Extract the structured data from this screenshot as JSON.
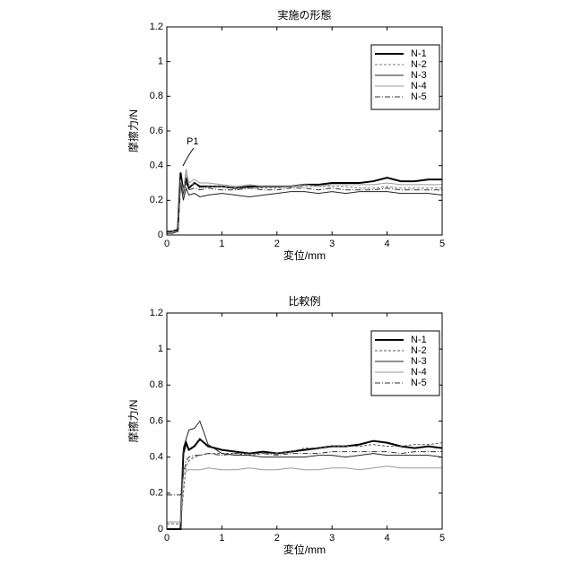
{
  "chart_data": [
    {
      "type": "line",
      "title": "実施の形態",
      "x_label": "変位/mm",
      "y_label": "摩擦力/N",
      "annotation": "P1",
      "x": [
        0,
        0.1,
        0.2,
        0.25,
        0.3,
        0.35,
        0.4,
        0.5,
        0.6,
        0.75,
        1,
        1.25,
        1.5,
        1.75,
        2,
        2.25,
        2.5,
        2.75,
        3,
        3.25,
        3.5,
        3.75,
        4,
        4.25,
        4.5,
        4.75,
        5
      ],
      "xlim": [
        0,
        5
      ],
      "xticks": [
        0,
        1,
        2,
        3,
        4,
        5
      ],
      "ylim": [
        0,
        1.2
      ],
      "yticks": [
        0,
        0.2,
        0.4,
        0.6,
        0.8,
        1,
        1.2
      ],
      "legend": "upper right",
      "series": [
        {
          "name": "N-1",
          "color": "#000000",
          "width": 2,
          "dash": "none",
          "values": [
            0.02,
            0.02,
            0.03,
            0.36,
            0.25,
            0.33,
            0.27,
            0.3,
            0.28,
            0.28,
            0.28,
            0.27,
            0.28,
            0.28,
            0.28,
            0.28,
            0.29,
            0.29,
            0.3,
            0.3,
            0.3,
            0.31,
            0.33,
            0.31,
            0.31,
            0.32,
            0.32
          ]
        },
        {
          "name": "N-2",
          "color": "#777777",
          "width": 1,
          "dash": "3 2",
          "values": [
            0.02,
            0.02,
            0.02,
            0.3,
            0.22,
            0.35,
            0.28,
            0.3,
            0.27,
            0.28,
            0.28,
            0.27,
            0.27,
            0.27,
            0.27,
            0.28,
            0.28,
            0.28,
            0.28,
            0.28,
            0.27,
            0.27,
            0.28,
            0.27,
            0.27,
            0.27,
            0.27
          ]
        },
        {
          "name": "N-3",
          "color": "#222222",
          "width": 1,
          "dash": "none",
          "values": [
            0.01,
            0.01,
            0.02,
            0.3,
            0.2,
            0.27,
            0.23,
            0.24,
            0.22,
            0.23,
            0.24,
            0.23,
            0.22,
            0.23,
            0.24,
            0.25,
            0.25,
            0.24,
            0.25,
            0.24,
            0.25,
            0.25,
            0.25,
            0.24,
            0.24,
            0.24,
            0.23
          ]
        },
        {
          "name": "N-4",
          "color": "#999999",
          "width": 1,
          "dash": "none",
          "values": [
            0.02,
            0.02,
            0.02,
            0.32,
            0.25,
            0.38,
            0.3,
            0.32,
            0.3,
            0.3,
            0.29,
            0.28,
            0.29,
            0.28,
            0.28,
            0.28,
            0.29,
            0.28,
            0.29,
            0.29,
            0.29,
            0.29,
            0.3,
            0.29,
            0.29,
            0.29,
            0.29
          ]
        },
        {
          "name": "N-5",
          "color": "#333333",
          "width": 1,
          "dash": "6 2 1 2",
          "values": [
            0.02,
            0.02,
            0.02,
            0.3,
            0.24,
            0.3,
            0.26,
            0.27,
            0.26,
            0.27,
            0.26,
            0.26,
            0.27,
            0.26,
            0.26,
            0.27,
            0.27,
            0.26,
            0.27,
            0.26,
            0.26,
            0.26,
            0.27,
            0.26,
            0.26,
            0.26,
            0.26
          ]
        }
      ]
    },
    {
      "type": "line",
      "title": "比較例",
      "x_label": "変位/mm",
      "y_label": "摩擦力/N",
      "x": [
        0,
        0.1,
        0.2,
        0.25,
        0.3,
        0.35,
        0.4,
        0.5,
        0.6,
        0.75,
        1,
        1.25,
        1.5,
        1.75,
        2,
        2.25,
        2.5,
        2.75,
        3,
        3.25,
        3.5,
        3.75,
        4,
        4.25,
        4.5,
        4.75,
        5
      ],
      "xlim": [
        0,
        5
      ],
      "xticks": [
        0,
        1,
        2,
        3,
        4,
        5
      ],
      "ylim": [
        0,
        1.2
      ],
      "yticks": [
        0,
        0.2,
        0.4,
        0.6,
        0.8,
        1,
        1.2
      ],
      "legend": "upper right",
      "series": [
        {
          "name": "N-1",
          "color": "#000000",
          "width": 2,
          "dash": "none",
          "values": [
            0,
            0,
            0,
            0,
            0.42,
            0.48,
            0.44,
            0.46,
            0.5,
            0.46,
            0.44,
            0.43,
            0.42,
            0.43,
            0.42,
            0.43,
            0.44,
            0.45,
            0.46,
            0.46,
            0.47,
            0.49,
            0.48,
            0.46,
            0.45,
            0.46,
            0.45
          ]
        },
        {
          "name": "N-2",
          "color": "#555555",
          "width": 1,
          "dash": "3 2",
          "values": [
            0.03,
            0.03,
            0.03,
            0.03,
            0.2,
            0.35,
            0.38,
            0.4,
            0.41,
            0.42,
            0.42,
            0.42,
            0.41,
            0.42,
            0.42,
            0.43,
            0.45,
            0.45,
            0.46,
            0.46,
            0.46,
            0.47,
            0.46,
            0.46,
            0.47,
            0.47,
            0.48
          ]
        },
        {
          "name": "N-3",
          "color": "#222222",
          "width": 1,
          "dash": "none",
          "values": [
            0,
            0,
            0,
            0,
            0.45,
            0.5,
            0.55,
            0.56,
            0.6,
            0.47,
            0.42,
            0.41,
            0.41,
            0.4,
            0.4,
            0.4,
            0.4,
            0.41,
            0.41,
            0.4,
            0.41,
            0.42,
            0.41,
            0.41,
            0.41,
            0.41,
            0.4
          ]
        },
        {
          "name": "N-4",
          "color": "#999999",
          "width": 1,
          "dash": "none",
          "values": [
            0.04,
            0.04,
            0.04,
            0.04,
            0.3,
            0.32,
            0.33,
            0.33,
            0.33,
            0.34,
            0.33,
            0.33,
            0.34,
            0.33,
            0.33,
            0.34,
            0.33,
            0.33,
            0.34,
            0.34,
            0.33,
            0.34,
            0.35,
            0.34,
            0.34,
            0.34,
            0.34
          ]
        },
        {
          "name": "N-5",
          "color": "#333333",
          "width": 1,
          "dash": "6 2 1 2",
          "values": [
            0.19,
            0.19,
            0.19,
            0.19,
            0.3,
            0.38,
            0.4,
            0.41,
            0.41,
            0.42,
            0.41,
            0.42,
            0.42,
            0.42,
            0.41,
            0.42,
            0.42,
            0.42,
            0.43,
            0.43,
            0.43,
            0.43,
            0.43,
            0.42,
            0.43,
            0.43,
            0.43
          ]
        }
      ]
    }
  ]
}
